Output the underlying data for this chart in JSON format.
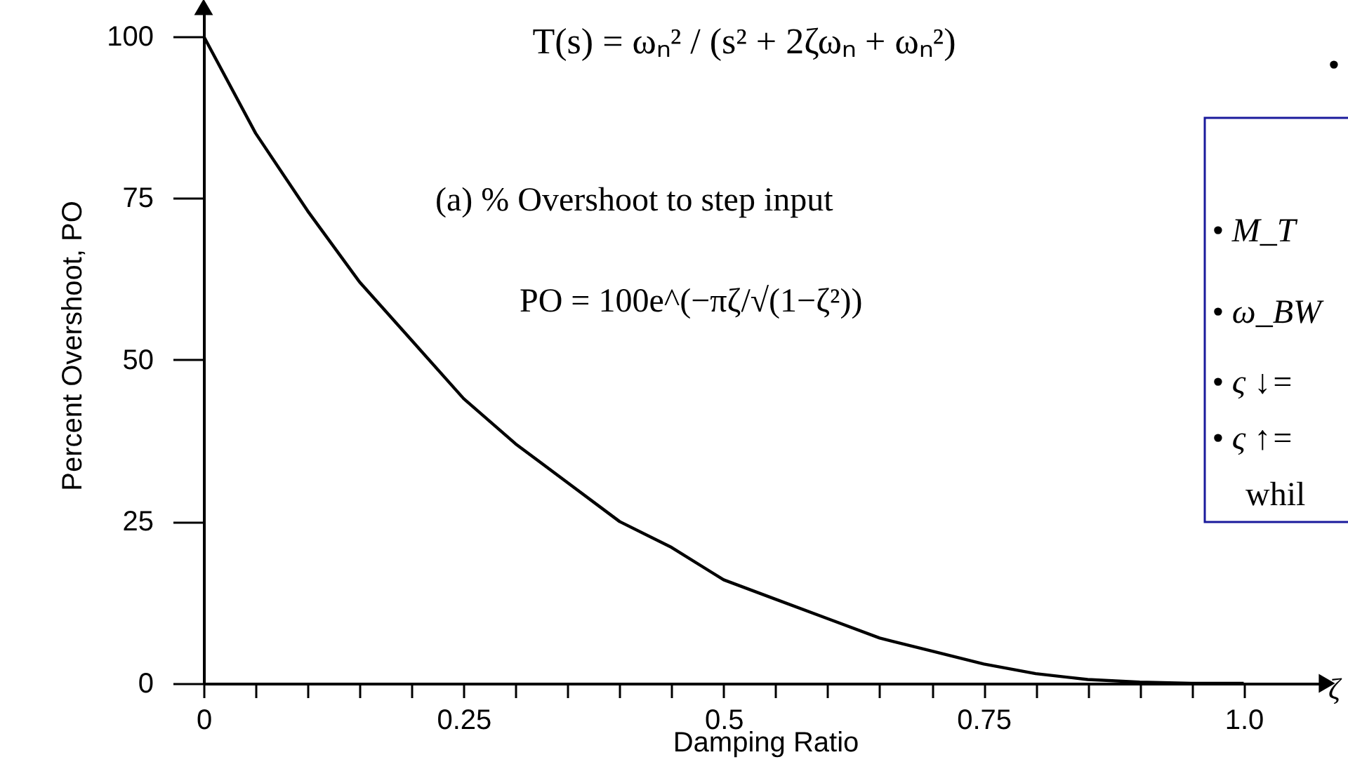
{
  "chart_data": {
    "type": "line",
    "xlabel": "Damping Ratio",
    "ylabel": "Percent Overshoot, PO",
    "annotations": [
      "T(s) = ωₙ² / (s² + 2ζωₙ + ωₙ²)",
      "(a)  % Overshoot to step input",
      "PO = 100e^(−πζ/√(1−ζ²))",
      "•",
      "•  M_T",
      "•  ω_BW",
      "•  ς ↓=",
      "•  ς ↑=",
      "whil",
      "ζ"
    ],
    "x": [
      0,
      0.05,
      0.1,
      0.15,
      0.2,
      0.25,
      0.3,
      0.35,
      0.4,
      0.45,
      0.5,
      0.55,
      0.6,
      0.65,
      0.7,
      0.75,
      0.8,
      0.85,
      0.9,
      0.95,
      1.0
    ],
    "series": [
      {
        "color": "#000000",
        "values": [
          100,
          85,
          73,
          62,
          53,
          44,
          37,
          31,
          25,
          21,
          16,
          13,
          10,
          7,
          5,
          3,
          1.5,
          0.6,
          0.2,
          0,
          0
        ]
      }
    ],
    "xlim": [
      0,
      1.08
    ],
    "ylim": [
      0,
      104.5
    ],
    "xticks": [
      0,
      {
        "value": 0.05,
        "label": null
      },
      {
        "value": 0.1,
        "label": null
      },
      {
        "value": 0.15,
        "label": null
      },
      {
        "value": 0.2,
        "label": null
      },
      0.25,
      {
        "value": 0.3,
        "label": null
      },
      {
        "value": 0.35,
        "label": null
      },
      {
        "value": 0.4,
        "label": null
      },
      {
        "value": 0.45,
        "label": null
      },
      0.5,
      {
        "value": 0.55,
        "label": null
      },
      {
        "value": 0.6,
        "label": null
      },
      {
        "value": 0.65,
        "label": null
      },
      {
        "value": 0.7,
        "label": null
      },
      0.75,
      {
        "value": 0.8,
        "label": null
      },
      {
        "value": 0.85,
        "label": null
      },
      {
        "value": 0.9,
        "label": null
      },
      {
        "value": 0.95,
        "label": null
      },
      {
        "value": 1.0,
        "label": "1.0"
      }
    ],
    "yticks": [
      0,
      25,
      50,
      75,
      100
    ],
    "grid": false,
    "marker": "none",
    "line_style": "solid"
  }
}
